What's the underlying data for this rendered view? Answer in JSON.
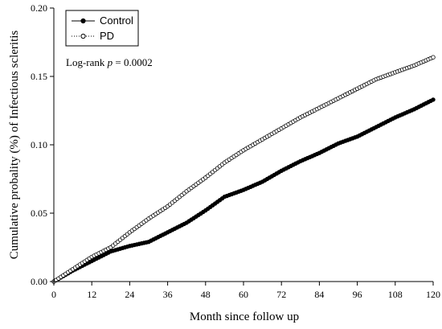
{
  "chart_data": {
    "type": "line",
    "title": "",
    "xlabel": "Month since follow up",
    "ylabel": "Cumulative probality (%) of Infectious scleritis",
    "xlim": [
      0,
      120
    ],
    "ylim": [
      0,
      0.2
    ],
    "x_ticks": [
      "0",
      "12",
      "24",
      "36",
      "48",
      "60",
      "72",
      "84",
      "96",
      "108",
      "120"
    ],
    "y_ticks": [
      "0.00",
      "0.05",
      "0.10",
      "0.15",
      "0.20"
    ],
    "annotation": {
      "prefix": "Log-rank ",
      "italic": "p",
      "suffix": " = 0.0002"
    },
    "legend": {
      "position": "top-left"
    },
    "series": [
      {
        "name": "Control",
        "marker": "filled-circle",
        "line": "solid",
        "color": "#000000",
        "x": [
          0,
          6,
          12,
          18,
          24,
          30,
          36,
          42,
          48,
          54,
          60,
          66,
          72,
          78,
          84,
          90,
          96,
          102,
          108,
          114,
          120
        ],
        "y": [
          0,
          0.008,
          0.015,
          0.022,
          0.026,
          0.029,
          0.036,
          0.043,
          0.052,
          0.062,
          0.067,
          0.073,
          0.081,
          0.088,
          0.094,
          0.101,
          0.106,
          0.113,
          0.12,
          0.126,
          0.133
        ]
      },
      {
        "name": "PD",
        "marker": "open-circle",
        "line": "dotted",
        "color": "#000000",
        "x": [
          0,
          6,
          12,
          18,
          24,
          30,
          36,
          42,
          48,
          54,
          60,
          66,
          72,
          78,
          84,
          90,
          96,
          102,
          108,
          114,
          120
        ],
        "y": [
          0,
          0.009,
          0.018,
          0.025,
          0.036,
          0.046,
          0.055,
          0.066,
          0.076,
          0.087,
          0.096,
          0.104,
          0.112,
          0.12,
          0.127,
          0.134,
          0.141,
          0.148,
          0.153,
          0.158,
          0.164
        ]
      }
    ]
  }
}
